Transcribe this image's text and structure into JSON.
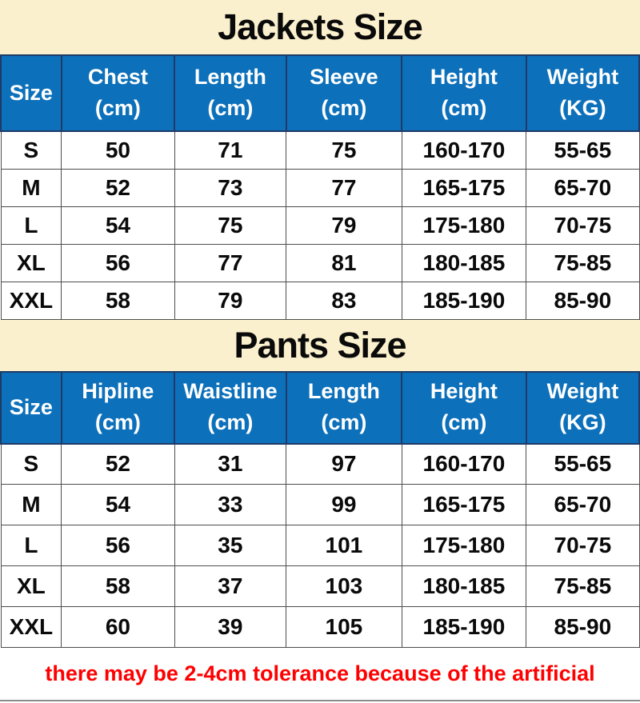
{
  "colors": {
    "banner_bg": "#FBF0CD",
    "header_bg": "#0D70BA",
    "header_divider": "#1E3A66",
    "cell_border": "#4D4D4D",
    "note_red": "#FF0000",
    "footer_line": "#8C8C8C",
    "text_black": "#0A0A0A",
    "row_bg": "#FFFFFF"
  },
  "footer": {
    "note": "there may be 2-4cm tolerance because of the artificial"
  },
  "chart_data": [
    {
      "type": "table",
      "title": "Jackets Size",
      "columns": [
        {
          "label": "Size",
          "unit": ""
        },
        {
          "label": "Chest",
          "unit": "(cm)"
        },
        {
          "label": "Length",
          "unit": "(cm)"
        },
        {
          "label": "Sleeve",
          "unit": "(cm)"
        },
        {
          "label": "Height",
          "unit": "(cm)"
        },
        {
          "label": "Weight",
          "unit": "(KG)"
        }
      ],
      "rows": [
        [
          "S",
          50,
          71,
          75,
          "160-170",
          "55-65"
        ],
        [
          "M",
          52,
          73,
          77,
          "165-175",
          "65-70"
        ],
        [
          "L",
          54,
          75,
          79,
          "175-180",
          "70-75"
        ],
        [
          "XL",
          56,
          77,
          81,
          "180-185",
          "75-85"
        ],
        [
          "XXL",
          58,
          79,
          83,
          "185-190",
          "85-90"
        ]
      ]
    },
    {
      "type": "table",
      "title": "Pants Size",
      "columns": [
        {
          "label": "Size",
          "unit": ""
        },
        {
          "label": "Hipline",
          "unit": "(cm)"
        },
        {
          "label": "Waistline",
          "unit": "(cm)"
        },
        {
          "label": "Length",
          "unit": "(cm)"
        },
        {
          "label": "Height",
          "unit": "(cm)"
        },
        {
          "label": "Weight",
          "unit": "(KG)"
        }
      ],
      "rows": [
        [
          "S",
          52,
          31,
          97,
          "160-170",
          "55-65"
        ],
        [
          "M",
          54,
          33,
          99,
          "165-175",
          "65-70"
        ],
        [
          "L",
          56,
          35,
          101,
          "175-180",
          "70-75"
        ],
        [
          "XL",
          58,
          37,
          103,
          "180-185",
          "75-85"
        ],
        [
          "XXL",
          60,
          39,
          105,
          "185-190",
          "85-90"
        ]
      ]
    }
  ],
  "layout": {
    "column_widths": [
      "9.5%",
      "17.7%",
      "17.5%",
      "18.1%",
      "19.5%",
      "17.7%"
    ]
  }
}
